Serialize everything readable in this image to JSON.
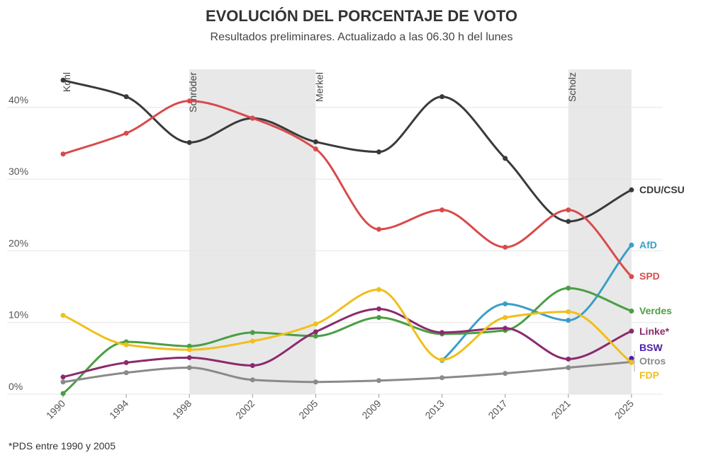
{
  "chart_data": {
    "type": "line",
    "title": "EVOLUCIÓN DEL PORCENTAJE DE VOTO",
    "subtitle": "Resultados preliminares. Actualizado a las 06.30 h del lunes",
    "note": "*PDS entre 1990 y 2005",
    "categories": [
      "1990",
      "1994",
      "1998",
      "2002",
      "2005",
      "2009",
      "2013",
      "2017",
      "2021",
      "2025"
    ],
    "yticks": [
      0,
      10,
      20,
      30,
      40
    ],
    "ytick_labels": [
      "0%",
      "10%",
      "20%",
      "30%",
      "40%"
    ],
    "ylim": [
      0,
      45
    ],
    "grid": true,
    "chancellor_periods": [
      {
        "name": "Kohl",
        "start": "1990",
        "end": "1998",
        "shaded": false
      },
      {
        "name": "Schröder",
        "start": "1998",
        "end": "2005",
        "shaded": true
      },
      {
        "name": "Merkel",
        "start": "2005",
        "end": "2021",
        "shaded": false
      },
      {
        "name": "Scholz",
        "start": "2021",
        "end": "2025",
        "shaded": true
      }
    ],
    "series": [
      {
        "name": "CDU/CSU",
        "color": "#3a3a3a",
        "values": [
          43.8,
          41.5,
          35.1,
          38.5,
          35.2,
          33.8,
          41.5,
          32.9,
          24.1,
          28.5
        ]
      },
      {
        "name": "AfD",
        "color": "#3a9ec7",
        "values": [
          null,
          null,
          null,
          null,
          null,
          null,
          4.7,
          12.6,
          10.3,
          20.8
        ]
      },
      {
        "name": "SPD",
        "color": "#d94a4a",
        "values": [
          33.5,
          36.4,
          40.9,
          38.5,
          34.2,
          23.0,
          25.7,
          20.5,
          25.7,
          16.4
        ]
      },
      {
        "name": "Verdes",
        "color": "#4a9e45",
        "values": [
          0.1,
          7.3,
          6.7,
          8.6,
          8.1,
          10.7,
          8.4,
          8.9,
          14.8,
          11.6
        ]
      },
      {
        "name": "Linke*",
        "color": "#8b2a6e",
        "values": [
          2.4,
          4.4,
          5.1,
          4.0,
          8.7,
          11.9,
          8.6,
          9.2,
          4.9,
          8.8
        ]
      },
      {
        "name": "BSW",
        "color": "#4b1fa8",
        "values": [
          null,
          null,
          null,
          null,
          null,
          null,
          null,
          null,
          null,
          5.0
        ]
      },
      {
        "name": "Otros",
        "color": "#8a8a8a",
        "values": [
          1.7,
          3.0,
          3.7,
          2.0,
          1.7,
          1.9,
          2.3,
          2.9,
          3.7,
          4.5
        ]
      },
      {
        "name": "FDP",
        "color": "#f0bf1a",
        "values": [
          11.0,
          6.9,
          6.2,
          7.4,
          9.8,
          14.6,
          4.8,
          10.7,
          11.5,
          4.4
        ]
      }
    ]
  }
}
